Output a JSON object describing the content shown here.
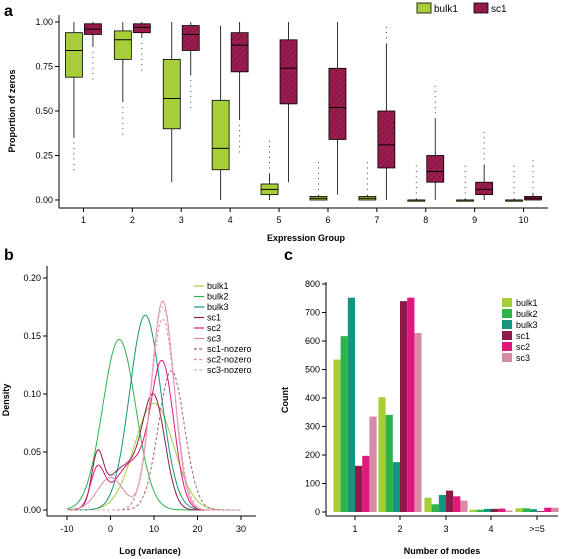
{
  "colors": {
    "bulk1": "#a6ce39",
    "sc1_a": "#9b1c4e",
    "bulk2": "#2db34a",
    "bulk3": "#13957e",
    "sc1": "#8e1b47",
    "sc2": "#e0177d",
    "sc3": "#d98aa5",
    "sc1_nozero": "#a8627f",
    "sc2_nozero": "#ec86b6",
    "sc3_nozero": "#e3b1c3"
  },
  "chart_data": [
    {
      "panel": "a",
      "type": "box",
      "legend": [
        "bulk1",
        "sc1"
      ],
      "legend_position": "top-right",
      "xlabel": "Expression Group",
      "ylabel": "Proportion of zeros",
      "ylim": [
        0,
        1
      ],
      "yticks": [
        "0.00",
        "0.25",
        "0.50",
        "0.75",
        "1.00"
      ],
      "categories": [
        "1",
        "2",
        "3",
        "4",
        "5",
        "6",
        "7",
        "8",
        "9",
        "10"
      ],
      "series": [
        {
          "name": "bulk1",
          "color_key": "bulk1",
          "boxes": [
            {
              "low": 0.35,
              "q1": 0.69,
              "median": 0.84,
              "q3": 0.94,
              "high": 1.0
            },
            {
              "low": 0.55,
              "q1": 0.79,
              "median": 0.9,
              "q3": 0.95,
              "high": 1.0
            },
            {
              "low": 0.1,
              "q1": 0.4,
              "median": 0.57,
              "q3": 0.79,
              "high": 1.0
            },
            {
              "low": 0.0,
              "q1": 0.17,
              "median": 0.29,
              "q3": 0.56,
              "high": 0.98
            },
            {
              "low": 0.0,
              "q1": 0.03,
              "median": 0.06,
              "q3": 0.09,
              "high": 0.15
            },
            {
              "low": 0.0,
              "q1": 0.0,
              "median": 0.01,
              "q3": 0.02,
              "high": 0.03
            },
            {
              "low": 0.0,
              "q1": 0.0,
              "median": 0.01,
              "q3": 0.02,
              "high": 0.03
            },
            {
              "low": 0.0,
              "q1": 0.0,
              "median": 0.0,
              "q3": 0.0,
              "high": 0.01
            },
            {
              "low": 0.0,
              "q1": 0.0,
              "median": 0.0,
              "q3": 0.0,
              "high": 0.01
            },
            {
              "low": 0.0,
              "q1": 0.0,
              "median": 0.0,
              "q3": 0.0,
              "high": 0.01
            }
          ]
        },
        {
          "name": "sc1",
          "color_key": "sc1_a",
          "boxes": [
            {
              "low": 0.86,
              "q1": 0.93,
              "median": 0.96,
              "q3": 0.99,
              "high": 1.0
            },
            {
              "low": 0.91,
              "q1": 0.94,
              "median": 0.97,
              "q3": 0.99,
              "high": 1.0
            },
            {
              "low": 0.7,
              "q1": 0.84,
              "median": 0.93,
              "q3": 0.98,
              "high": 1.0
            },
            {
              "low": 0.45,
              "q1": 0.72,
              "median": 0.87,
              "q3": 0.94,
              "high": 1.0
            },
            {
              "low": 0.1,
              "q1": 0.54,
              "median": 0.74,
              "q3": 0.9,
              "high": 1.0
            },
            {
              "low": 0.03,
              "q1": 0.34,
              "median": 0.52,
              "q3": 0.74,
              "high": 1.0
            },
            {
              "low": 0.0,
              "q1": 0.18,
              "median": 0.31,
              "q3": 0.5,
              "high": 0.88
            },
            {
              "low": 0.0,
              "q1": 0.1,
              "median": 0.16,
              "q3": 0.25,
              "high": 0.46
            },
            {
              "low": 0.0,
              "q1": 0.03,
              "median": 0.06,
              "q3": 0.1,
              "high": 0.2
            },
            {
              "low": 0.0,
              "q1": 0.0,
              "median": 0.01,
              "q3": 0.02,
              "high": 0.04
            }
          ]
        }
      ]
    },
    {
      "panel": "b",
      "type": "line",
      "xlabel": "Log (variance)",
      "ylabel": "Density",
      "xlim": [
        -15,
        35
      ],
      "ylim": [
        0,
        0.21
      ],
      "xticks": [
        "-10",
        "0",
        "10",
        "20",
        "30"
      ],
      "yticks": [
        "0.00",
        "0.05",
        "0.10",
        "0.15",
        "0.20"
      ],
      "legend_position": "top-right",
      "series": [
        {
          "name": "bulk1",
          "color_key": "bulk1",
          "dash": false,
          "peaks": [
            [
              10,
              0.092,
              4.5
            ]
          ]
        },
        {
          "name": "bulk2",
          "color_key": "bulk2",
          "dash": false,
          "peaks": [
            [
              2,
              0.147,
              3.8
            ]
          ]
        },
        {
          "name": "bulk3",
          "color_key": "bulk3",
          "dash": false,
          "peaks": [
            [
              8,
              0.168,
              3.6
            ]
          ]
        },
        {
          "name": "sc1",
          "color_key": "sc1",
          "dash": false,
          "peaks": [
            [
              -3,
              0.04,
              1.3
            ],
            [
              3,
              0.036,
              4
            ],
            [
              10,
              0.092,
              2.6
            ]
          ]
        },
        {
          "name": "sc2",
          "color_key": "sc2",
          "dash": false,
          "peaks": [
            [
              -3,
              0.033,
              1.6
            ],
            [
              5,
              0.04,
              4
            ],
            [
              12,
              0.12,
              2.6
            ]
          ]
        },
        {
          "name": "sc3",
          "color_key": "sc3",
          "dash": false,
          "peaks": [
            [
              0,
              0.028,
              3
            ],
            [
              12,
              0.18,
              2.6
            ]
          ]
        },
        {
          "name": "sc1-nozero",
          "color_key": "sc1_nozero",
          "dash": true,
          "peaks": [
            [
              14,
              0.12,
              3
            ]
          ]
        },
        {
          "name": "sc2-nozero",
          "color_key": "sc2_nozero",
          "dash": true,
          "peaks": [
            [
              12,
              0.165,
              2.8
            ]
          ]
        },
        {
          "name": "sc3-nozero",
          "color_key": "sc3_nozero",
          "dash": true,
          "peaks": [
            [
              12,
              0.175,
              2.7
            ]
          ]
        }
      ]
    },
    {
      "panel": "c",
      "type": "bar",
      "xlabel": "Number of modes",
      "ylabel": "Count",
      "ylim": [
        0,
        800
      ],
      "yticks": [
        "0",
        "100",
        "200",
        "300",
        "400",
        "500",
        "600",
        "700",
        "800"
      ],
      "categories": [
        "1",
        "2",
        "3",
        "4",
        ">=5"
      ],
      "legend_position": "right",
      "series": [
        {
          "name": "bulk1",
          "color_key": "bulk1",
          "values": [
            535,
            403,
            50,
            8,
            13
          ]
        },
        {
          "name": "bulk2",
          "color_key": "bulk2",
          "values": [
            617,
            341,
            27,
            8,
            13
          ]
        },
        {
          "name": "bulk3",
          "color_key": "bulk3",
          "values": [
            752,
            175,
            60,
            11,
            10
          ]
        },
        {
          "name": "sc1",
          "color_key": "sc1",
          "values": [
            162,
            740,
            75,
            11,
            3
          ]
        },
        {
          "name": "sc2",
          "color_key": "sc2",
          "values": [
            197,
            752,
            55,
            12,
            15
          ]
        },
        {
          "name": "sc3",
          "color_key": "sc3",
          "values": [
            335,
            628,
            40,
            5,
            15
          ]
        }
      ]
    }
  ],
  "panels": {
    "a": {
      "label": "a"
    },
    "b": {
      "label": "b"
    },
    "c": {
      "label": "c"
    }
  }
}
